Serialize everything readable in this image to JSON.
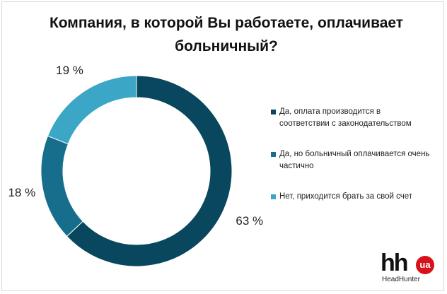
{
  "title": "Компания, в которой Вы работаете, оплачивает больничный?",
  "chart_data": {
    "type": "pie",
    "style": "donut",
    "title": "Компания, в которой Вы работаете, оплачивает больничный?",
    "categories": [
      "Да, оплата производится в соответствии с законодательством",
      "Да, но больничный оплачивается очень частично",
      "Нет, приходится брать за свой счет"
    ],
    "values": [
      63,
      18,
      19
    ],
    "value_labels": [
      "63 %",
      "18 %",
      "19 %"
    ],
    "colors": [
      "#08475e",
      "#166e8c",
      "#3ba6c6"
    ],
    "legend_position": "right"
  },
  "logo": {
    "mark": "hh",
    "badge": "ua",
    "subtitle": "HeadHunter"
  }
}
